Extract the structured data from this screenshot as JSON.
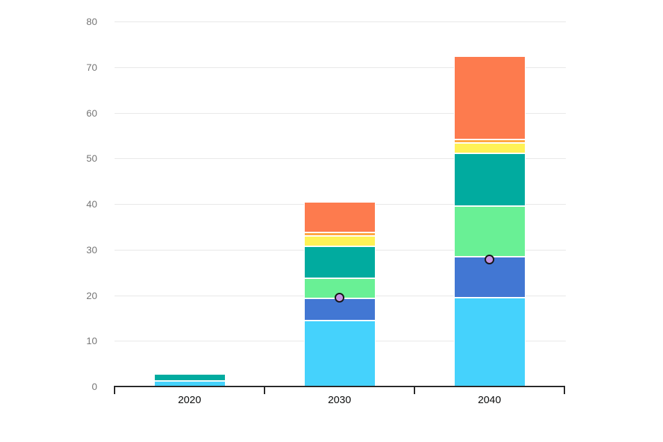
{
  "chart_data": {
    "type": "bar",
    "subtype": "stacked-column-with-markers",
    "title": "",
    "xlabel": "",
    "ylabel": "",
    "categories": [
      "2020",
      "2030",
      "2040"
    ],
    "series": [
      {
        "name": "sky-blue-segment",
        "color": "#45d2fc",
        "values": [
          1.2,
          14.4,
          19.5
        ]
      },
      {
        "name": "blue-segment",
        "color": "#4277d3",
        "values": [
          0,
          4.9,
          9.0
        ]
      },
      {
        "name": "light-green-segment",
        "color": "#69f095",
        "values": [
          0,
          4.4,
          11.0
        ]
      },
      {
        "name": "teal-segment",
        "color": "#01ab9f",
        "values": [
          1.6,
          7.0,
          11.6
        ]
      },
      {
        "name": "yellow-segment",
        "color": "#fff256",
        "values": [
          0,
          2.3,
          2.3
        ]
      },
      {
        "name": "amber-segment",
        "color": "#ffa640",
        "values": [
          0,
          0.7,
          0.8
        ]
      },
      {
        "name": "orange-segment",
        "color": "#fd7b4e",
        "values": [
          0,
          6.8,
          18.2
        ]
      }
    ],
    "stack_totals": [
      2.8,
      40.5,
      72.4
    ],
    "markers": {
      "name": "marker",
      "fill": "#c494e4",
      "stroke": "#141414",
      "values": [
        null,
        19.4,
        27.9
      ]
    },
    "ylim": [
      0,
      80
    ],
    "ytick_step": 10,
    "yticks": [
      "0",
      "10",
      "20",
      "30",
      "40",
      "50",
      "60",
      "70",
      "80"
    ],
    "grid": "horizontal",
    "legend": "none"
  },
  "style": {
    "background": "#ffffff",
    "grid_color": "#e7e7e7",
    "axis_color": "#262626",
    "y_label_color": "#757575",
    "x_label_color": "#0b0c0c",
    "segment_border_color": "#ffffff"
  }
}
